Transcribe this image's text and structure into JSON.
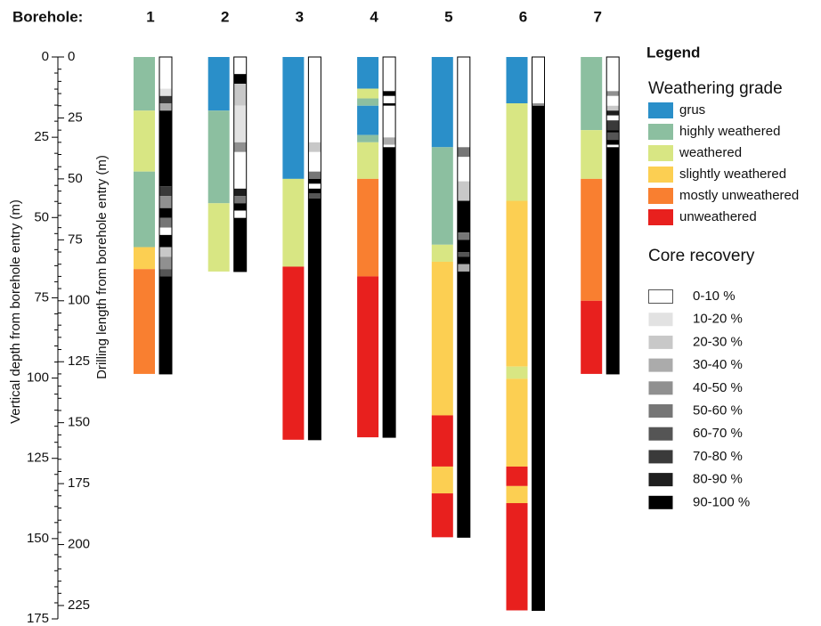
{
  "chart_data": {
    "type": "borehole-log",
    "category_label": "Borehole:",
    "ylabel": "Vertical depth from borehole entry (m)",
    "ylim": [
      0,
      175
    ],
    "yticks": [
      0,
      25,
      50,
      75,
      100,
      125,
      150,
      175
    ],
    "y2label": "Drilling length from borehole entry (m)",
    "y2lim": [
      0,
      225
    ],
    "y2ticks": [
      0,
      25,
      50,
      75,
      100,
      125,
      150,
      175,
      200,
      225
    ],
    "legend_title": "Legend",
    "weathering_title": "Weathering grade",
    "weathering_grades": [
      {
        "name": "grus",
        "color": "#2a8fc9"
      },
      {
        "name": "highly weathered",
        "color": "#8cbfa0"
      },
      {
        "name": "weathered",
        "color": "#d8e683"
      },
      {
        "name": "slightly weathered",
        "color": "#fccf52"
      },
      {
        "name": "mostly unweathered",
        "color": "#f97f30"
      },
      {
        "name": "unweathered",
        "color": "#e8201e"
      }
    ],
    "recovery_title": "Core recovery",
    "recovery_classes": [
      {
        "name": "0-10 %",
        "color": "#ffffff"
      },
      {
        "name": "10-20 %",
        "color": "#e2e2e2"
      },
      {
        "name": "20-30 %",
        "color": "#c8c8c8"
      },
      {
        "name": "30-40 %",
        "color": "#ababab"
      },
      {
        "name": "40-50 %",
        "color": "#909090"
      },
      {
        "name": "50-60 %",
        "color": "#767676"
      },
      {
        "name": "60-70 %",
        "color": "#555555"
      },
      {
        "name": "70-80 %",
        "color": "#3a3a3a"
      },
      {
        "name": "80-90 %",
        "color": "#1e1e1e"
      },
      {
        "name": "90-100 %",
        "color": "#000000"
      }
    ],
    "boreholes": [
      {
        "name": "1",
        "weathering": {
          "depths": [
            0,
            22,
            47,
            78,
            87,
            130
          ],
          "grades": [
            1,
            2,
            1,
            3,
            4
          ]
        },
        "recovery": {
          "depths": [
            0,
            13,
            16,
            19,
            22,
            53,
            57,
            62,
            66,
            70,
            73,
            78,
            82,
            87,
            90,
            130
          ],
          "classes": [
            0,
            1,
            7,
            3,
            9,
            7,
            4,
            9,
            5,
            0,
            9,
            2,
            4,
            6,
            9
          ]
        }
      },
      {
        "name": "2",
        "weathering": {
          "depths": [
            0,
            22,
            60,
            88
          ],
          "grades": [
            0,
            1,
            2
          ]
        },
        "recovery": {
          "depths": [
            0,
            7,
            11,
            20,
            35,
            39,
            54,
            57,
            60,
            63,
            66,
            88
          ],
          "classes": [
            0,
            9,
            2,
            1,
            4,
            0,
            8,
            5,
            9,
            0,
            9
          ]
        }
      },
      {
        "name": "3",
        "weathering": {
          "depths": [
            0,
            50,
            86,
            157
          ],
          "grades": [
            0,
            2,
            5
          ]
        },
        "recovery": {
          "depths": [
            0,
            35,
            39,
            47,
            50,
            52,
            54,
            56,
            58,
            157
          ],
          "classes": [
            0,
            2,
            0,
            5,
            9,
            0,
            9,
            6,
            9
          ]
        }
      },
      {
        "name": "4",
        "weathering": {
          "depths": [
            0,
            13,
            17,
            20,
            32,
            35,
            50,
            90,
            156
          ],
          "grades": [
            0,
            2,
            1,
            0,
            1,
            2,
            4,
            5
          ]
        },
        "recovery": {
          "depths": [
            0,
            14,
            16,
            19,
            20,
            33,
            36,
            37,
            156
          ],
          "classes": [
            0,
            9,
            0,
            9,
            0,
            3,
            0,
            9
          ]
        }
      },
      {
        "name": "5",
        "weathering": {
          "depths": [
            0,
            37,
            77,
            84,
            147,
            168,
            179,
            197
          ],
          "grades": [
            0,
            1,
            2,
            3,
            5,
            3,
            5
          ]
        },
        "recovery": {
          "depths": [
            0,
            37,
            41,
            51,
            59,
            72,
            75,
            80,
            82,
            85,
            88,
            197
          ],
          "classes": [
            0,
            5,
            0,
            2,
            9,
            5,
            9,
            6,
            9,
            3,
            9
          ]
        }
      },
      {
        "name": "6",
        "weathering": {
          "depths": [
            0,
            19,
            59,
            127,
            132,
            168,
            176,
            183,
            227
          ],
          "grades": [
            0,
            2,
            3,
            2,
            3,
            5,
            3,
            5
          ]
        },
        "recovery": {
          "depths": [
            0,
            19,
            20,
            227
          ],
          "classes": [
            0,
            4,
            9
          ]
        }
      },
      {
        "name": "7",
        "weathering": {
          "depths": [
            0,
            30,
            50,
            100,
            130
          ],
          "grades": [
            1,
            2,
            4,
            5
          ]
        },
        "recovery": {
          "depths": [
            0,
            14,
            16,
            20,
            22,
            24,
            26,
            30,
            31,
            34,
            36,
            37,
            130
          ],
          "classes": [
            0,
            4,
            0,
            2,
            8,
            0,
            7,
            9,
            6,
            9,
            0,
            9
          ]
        }
      }
    ]
  }
}
